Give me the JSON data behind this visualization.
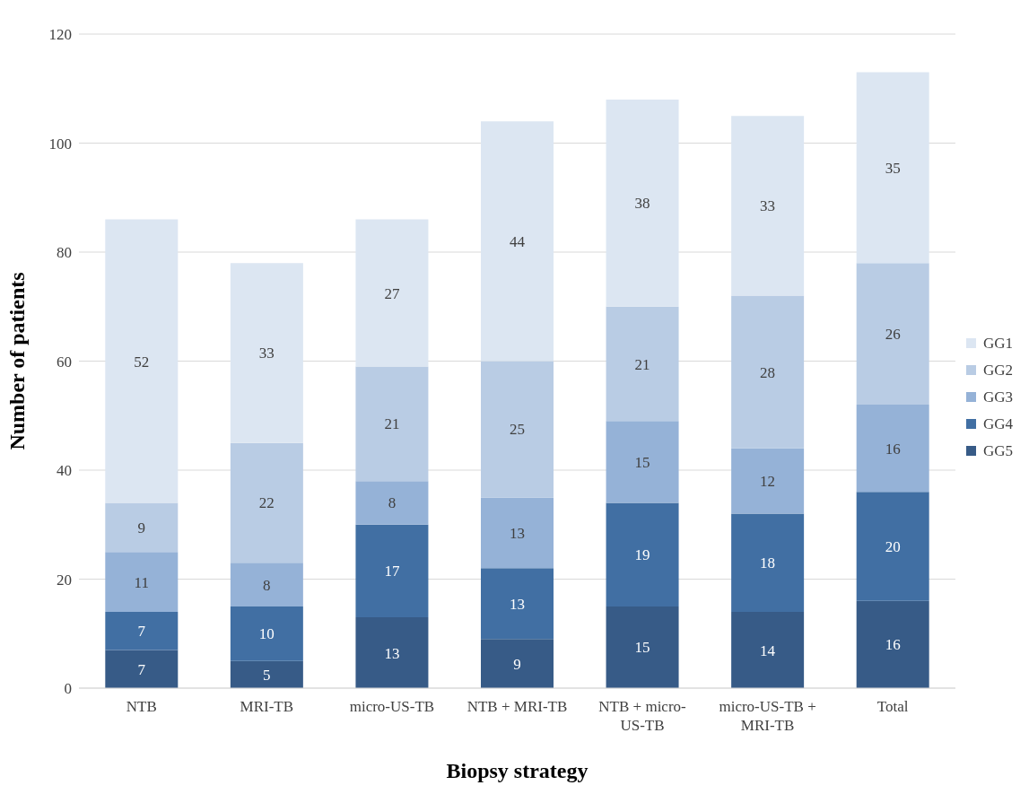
{
  "chart_data": {
    "type": "bar",
    "stacked": true,
    "xlabel": "Biopsy strategy",
    "ylabel": "Number of patients",
    "categories": [
      "NTB",
      "MRI-TB",
      "micro-US-TB",
      "NTB + MRI-TB",
      "NTB + micro-US-TB",
      "micro-US-TB + MRI-TB",
      "Total"
    ],
    "series": [
      {
        "name": "GG5",
        "color": "#375b87",
        "values": [
          7,
          5,
          13,
          9,
          15,
          14,
          16
        ]
      },
      {
        "name": "GG4",
        "color": "#416fa3",
        "values": [
          7,
          10,
          17,
          13,
          19,
          18,
          20
        ]
      },
      {
        "name": "GG3",
        "color": "#95b2d7",
        "values": [
          11,
          8,
          8,
          13,
          15,
          12,
          16
        ]
      },
      {
        "name": "GG2",
        "color": "#b9cce4",
        "values": [
          9,
          22,
          21,
          25,
          21,
          28,
          26
        ]
      },
      {
        "name": "GG1",
        "color": "#dce6f2",
        "values": [
          52,
          33,
          27,
          44,
          38,
          33,
          35
        ]
      }
    ],
    "ylim": [
      0,
      120
    ],
    "yticks": [
      0,
      20,
      40,
      60,
      80,
      100,
      120
    ],
    "grid": "y",
    "legend": "right",
    "data_labels": true
  }
}
